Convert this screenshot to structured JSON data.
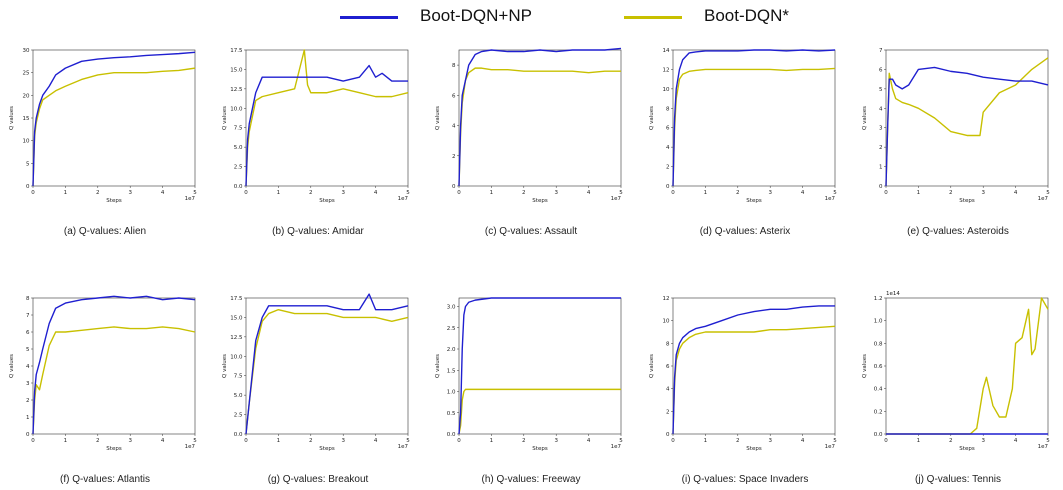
{
  "legend": {
    "entries": [
      {
        "label": "Boot-DQN+NP",
        "color": "#1f1fd0"
      },
      {
        "label": "Boot-DQN*",
        "color": "#c8c000"
      }
    ]
  },
  "chart_data": [
    {
      "type": "line",
      "caption": "(a) Q-values: Alien",
      "xlabel": "Steps",
      "ylabel": "Q values",
      "x_multiplier": "1e7",
      "xlim": [
        0,
        5
      ],
      "xticks": [
        0,
        1,
        2,
        3,
        4,
        5
      ],
      "ylim": [
        0,
        30
      ],
      "yticks": [
        0,
        5,
        10,
        15,
        20,
        25,
        30
      ],
      "y_multiplier": "",
      "series": [
        {
          "name": "Boot-DQN+NP",
          "color": "#1f1fd0",
          "x": [
            0,
            0.05,
            0.1,
            0.2,
            0.3,
            0.5,
            0.7,
            1,
            1.5,
            2,
            2.5,
            3,
            3.5,
            4,
            4.5,
            5
          ],
          "y": [
            0,
            12,
            15,
            18,
            20,
            22,
            24.5,
            26,
            27.5,
            28,
            28.3,
            28.5,
            28.8,
            29,
            29.2,
            29.5
          ]
        },
        {
          "name": "Boot-DQN*",
          "color": "#c8c000",
          "x": [
            0,
            0.05,
            0.1,
            0.2,
            0.3,
            0.5,
            0.7,
            1,
            1.5,
            2,
            2.5,
            3,
            3.5,
            4,
            4.5,
            5
          ],
          "y": [
            0,
            11,
            14,
            17,
            19,
            20,
            21,
            22,
            23.5,
            24.5,
            25,
            25,
            25,
            25.3,
            25.5,
            26
          ]
        }
      ]
    },
    {
      "type": "line",
      "caption": "(b) Q-values: Amidar",
      "xlabel": "Steps",
      "ylabel": "Q values",
      "x_multiplier": "1e7",
      "xlim": [
        0,
        5
      ],
      "xticks": [
        0,
        1,
        2,
        3,
        4,
        5
      ],
      "ylim": [
        0,
        17.5
      ],
      "yticks": [
        0.0,
        2.5,
        5.0,
        7.5,
        10.0,
        12.5,
        15.0,
        17.5
      ],
      "y_multiplier": "",
      "series": [
        {
          "name": "Boot-DQN+NP",
          "color": "#1f1fd0",
          "x": [
            0,
            0.05,
            0.1,
            0.2,
            0.3,
            0.5,
            1,
            1.5,
            2,
            2.5,
            3,
            3.5,
            3.8,
            4,
            4.2,
            4.5,
            5
          ],
          "y": [
            0,
            6,
            8,
            10,
            12,
            14,
            14,
            14,
            14,
            14,
            13.5,
            14,
            15.5,
            14,
            14.5,
            13.5,
            13.5
          ]
        },
        {
          "name": "Boot-DQN*",
          "color": "#c8c000",
          "x": [
            0,
            0.05,
            0.1,
            0.2,
            0.3,
            0.5,
            1,
            1.5,
            1.8,
            1.9,
            2,
            2.5,
            3,
            3.5,
            4,
            4.5,
            5
          ],
          "y": [
            0,
            5,
            7,
            9,
            11,
            11.5,
            12,
            12.5,
            17.5,
            13,
            12,
            12,
            12.5,
            12,
            11.5,
            11.5,
            12
          ]
        }
      ]
    },
    {
      "type": "line",
      "caption": "(c) Q-values: Assault",
      "xlabel": "Steps",
      "ylabel": "Q values",
      "x_multiplier": "1e7",
      "xlim": [
        0,
        5
      ],
      "xticks": [
        0,
        1,
        2,
        3,
        4,
        5
      ],
      "ylim": [
        0,
        9
      ],
      "yticks": [
        0,
        2,
        4,
        6,
        8
      ],
      "y_multiplier": "",
      "series": [
        {
          "name": "Boot-DQN+NP",
          "color": "#1f1fd0",
          "x": [
            0,
            0.05,
            0.1,
            0.2,
            0.3,
            0.5,
            0.7,
            1,
            1.5,
            2,
            2.5,
            3,
            3.5,
            4,
            4.5,
            5
          ],
          "y": [
            0,
            4,
            6,
            7,
            8,
            8.7,
            8.9,
            9,
            8.9,
            8.9,
            9,
            8.9,
            9,
            9,
            9,
            9.1
          ]
        },
        {
          "name": "Boot-DQN*",
          "color": "#c8c000",
          "x": [
            0,
            0.05,
            0.1,
            0.2,
            0.3,
            0.5,
            0.7,
            1,
            1.5,
            2,
            2.5,
            3,
            3.5,
            4,
            4.5,
            5
          ],
          "y": [
            0,
            3.5,
            5.5,
            7,
            7.5,
            7.8,
            7.8,
            7.7,
            7.7,
            7.6,
            7.6,
            7.6,
            7.6,
            7.5,
            7.6,
            7.6
          ]
        }
      ]
    },
    {
      "type": "line",
      "caption": "(d) Q-values: Asterix",
      "xlabel": "Steps",
      "ylabel": "Q values",
      "x_multiplier": "1e7",
      "xlim": [
        0,
        5
      ],
      "xticks": [
        0,
        1,
        2,
        3,
        4,
        5
      ],
      "ylim": [
        0,
        14
      ],
      "yticks": [
        0,
        2,
        4,
        6,
        8,
        10,
        12,
        14
      ],
      "y_multiplier": "",
      "series": [
        {
          "name": "Boot-DQN+NP",
          "color": "#1f1fd0",
          "x": [
            0,
            0.05,
            0.1,
            0.2,
            0.3,
            0.5,
            0.7,
            1,
            1.5,
            2,
            2.5,
            3,
            3.5,
            4,
            4.5,
            5
          ],
          "y": [
            0,
            7,
            10,
            12,
            13,
            13.7,
            13.8,
            13.9,
            13.9,
            13.9,
            14,
            14,
            13.9,
            14,
            13.9,
            14
          ]
        },
        {
          "name": "Boot-DQN*",
          "color": "#c8c000",
          "x": [
            0,
            0.05,
            0.1,
            0.2,
            0.3,
            0.5,
            0.7,
            1,
            1.5,
            2,
            2.5,
            3,
            3.5,
            4,
            4.5,
            5
          ],
          "y": [
            0,
            6,
            9,
            11,
            11.5,
            11.8,
            11.9,
            12,
            12,
            12,
            12,
            12,
            11.9,
            12,
            12,
            12.1
          ]
        }
      ]
    },
    {
      "type": "line",
      "caption": "(e) Q-values: Asteroids",
      "xlabel": "Steps",
      "ylabel": "Q values",
      "x_multiplier": "1e7",
      "xlim": [
        0,
        5
      ],
      "xticks": [
        0,
        1,
        2,
        3,
        4,
        5
      ],
      "ylim": [
        0,
        7
      ],
      "yticks": [
        0,
        1,
        2,
        3,
        4,
        5,
        6,
        7
      ],
      "y_multiplier": "",
      "series": [
        {
          "name": "Boot-DQN+NP",
          "color": "#1f1fd0",
          "x": [
            0,
            0.05,
            0.1,
            0.2,
            0.3,
            0.5,
            0.7,
            1,
            1.5,
            2,
            2.5,
            3,
            3.5,
            4,
            4.5,
            5
          ],
          "y": [
            0,
            3,
            5.5,
            5.5,
            5.2,
            5,
            5.2,
            6,
            6.1,
            5.9,
            5.8,
            5.6,
            5.5,
            5.4,
            5.4,
            5.2
          ]
        },
        {
          "name": "Boot-DQN*",
          "color": "#c8c000",
          "x": [
            0,
            0.05,
            0.1,
            0.2,
            0.3,
            0.5,
            0.7,
            1,
            1.5,
            2,
            2.5,
            2.9,
            3,
            3.5,
            4,
            4.5,
            5
          ],
          "y": [
            0,
            3,
            5.8,
            5,
            4.5,
            4.3,
            4.2,
            4,
            3.5,
            2.8,
            2.6,
            2.6,
            3.8,
            4.8,
            5.2,
            6,
            6.6
          ]
        }
      ]
    },
    {
      "type": "line",
      "caption": "(f) Q-values: Atlantis",
      "xlabel": "Steps",
      "ylabel": "Q values",
      "x_multiplier": "1e7",
      "xlim": [
        0,
        5
      ],
      "xticks": [
        0,
        1,
        2,
        3,
        4,
        5
      ],
      "ylim": [
        0,
        8
      ],
      "yticks": [
        0,
        1,
        2,
        3,
        4,
        5,
        6,
        7,
        8
      ],
      "y_multiplier": "",
      "series": [
        {
          "name": "Boot-DQN+NP",
          "color": "#1f1fd0",
          "x": [
            0,
            0.05,
            0.1,
            0.2,
            0.3,
            0.5,
            0.7,
            1,
            1.5,
            2,
            2.5,
            3,
            3.5,
            4,
            4.5,
            5
          ],
          "y": [
            0,
            2.5,
            3.5,
            4.2,
            5,
            6.5,
            7.4,
            7.7,
            7.9,
            8,
            8.1,
            8,
            8.1,
            7.9,
            8,
            7.9
          ]
        },
        {
          "name": "Boot-DQN*",
          "color": "#c8c000",
          "x": [
            0,
            0.05,
            0.1,
            0.2,
            0.3,
            0.5,
            0.7,
            1,
            1.5,
            2,
            2.5,
            3,
            3.5,
            4,
            4.5,
            5
          ],
          "y": [
            0,
            2,
            2.9,
            2.6,
            3.5,
            5.2,
            6,
            6,
            6.1,
            6.2,
            6.3,
            6.2,
            6.2,
            6.3,
            6.2,
            6
          ]
        }
      ]
    },
    {
      "type": "line",
      "caption": "(g) Q-values: Breakout",
      "xlabel": "Steps",
      "ylabel": "Q values",
      "x_multiplier": "1e7",
      "xlim": [
        0,
        5
      ],
      "xticks": [
        0,
        1,
        2,
        3,
        4,
        5
      ],
      "ylim": [
        0,
        17.5
      ],
      "yticks": [
        0.0,
        2.5,
        5.0,
        7.5,
        10.0,
        12.5,
        15.0,
        17.5
      ],
      "y_multiplier": "",
      "series": [
        {
          "name": "Boot-DQN+NP",
          "color": "#1f1fd0",
          "x": [
            0,
            0.05,
            0.1,
            0.2,
            0.3,
            0.5,
            0.7,
            1,
            1.5,
            2,
            2.5,
            3,
            3.5,
            3.8,
            4,
            4.5,
            5
          ],
          "y": [
            0,
            2,
            4,
            8,
            12,
            15,
            16.5,
            16.5,
            16.5,
            16.5,
            16.5,
            16,
            16,
            18,
            16,
            16,
            16.5
          ]
        },
        {
          "name": "Boot-DQN*",
          "color": "#c8c000",
          "x": [
            0,
            0.05,
            0.1,
            0.2,
            0.3,
            0.5,
            0.7,
            1,
            1.5,
            2,
            2.5,
            3,
            3.5,
            4,
            4.5,
            5
          ],
          "y": [
            0,
            2,
            4,
            7.5,
            11,
            14.5,
            15.5,
            16,
            15.5,
            15.5,
            15.5,
            15,
            15,
            15,
            14.5,
            15
          ]
        }
      ]
    },
    {
      "type": "line",
      "caption": "(h) Q-values: Freeway",
      "xlabel": "Steps",
      "ylabel": "Q values",
      "x_multiplier": "1e7",
      "xlim": [
        0,
        5
      ],
      "xticks": [
        0,
        1,
        2,
        3,
        4,
        5
      ],
      "ylim": [
        0,
        3.2
      ],
      "yticks": [
        0.0,
        0.5,
        1.0,
        1.5,
        2.0,
        2.5,
        3.0
      ],
      "y_multiplier": "",
      "series": [
        {
          "name": "Boot-DQN+NP",
          "color": "#1f1fd0",
          "x": [
            0,
            0.05,
            0.1,
            0.15,
            0.2,
            0.3,
            0.5,
            1,
            2,
            3,
            4,
            5
          ],
          "y": [
            0,
            0.5,
            2,
            2.8,
            3,
            3.1,
            3.15,
            3.2,
            3.2,
            3.2,
            3.2,
            3.2
          ]
        },
        {
          "name": "Boot-DQN*",
          "color": "#c8c000",
          "x": [
            0,
            0.05,
            0.1,
            0.15,
            0.2,
            0.3,
            0.5,
            1,
            2,
            3,
            4,
            5
          ],
          "y": [
            0,
            0.2,
            0.8,
            1.0,
            1.05,
            1.05,
            1.05,
            1.05,
            1.05,
            1.05,
            1.05,
            1.05
          ]
        }
      ]
    },
    {
      "type": "line",
      "caption": "(i) Q-values: Space Invaders",
      "xlabel": "Steps",
      "ylabel": "Q values",
      "x_multiplier": "1e7",
      "xlim": [
        0,
        5
      ],
      "xticks": [
        0,
        1,
        2,
        3,
        4,
        5
      ],
      "ylim": [
        0,
        12
      ],
      "yticks": [
        0,
        2,
        4,
        6,
        8,
        10,
        12
      ],
      "y_multiplier": "",
      "series": [
        {
          "name": "Boot-DQN+NP",
          "color": "#1f1fd0",
          "x": [
            0,
            0.05,
            0.1,
            0.2,
            0.3,
            0.5,
            0.7,
            1,
            1.5,
            2,
            2.5,
            3,
            3.5,
            4,
            4.5,
            5
          ],
          "y": [
            0,
            5,
            7,
            8,
            8.5,
            9,
            9.3,
            9.5,
            10,
            10.5,
            10.8,
            11,
            11,
            11.2,
            11.3,
            11.3
          ]
        },
        {
          "name": "Boot-DQN*",
          "color": "#c8c000",
          "x": [
            0,
            0.05,
            0.1,
            0.2,
            0.3,
            0.5,
            0.7,
            1,
            1.5,
            2,
            2.5,
            3,
            3.5,
            4,
            4.5,
            5
          ],
          "y": [
            0,
            4.5,
            6.5,
            7.5,
            8,
            8.5,
            8.8,
            9,
            9,
            9,
            9,
            9.2,
            9.2,
            9.3,
            9.4,
            9.5
          ]
        }
      ]
    },
    {
      "type": "line",
      "caption": "(j) Q-values: Tennis",
      "xlabel": "Steps",
      "ylabel": "Q values",
      "x_multiplier": "1e7",
      "xlim": [
        0,
        5
      ],
      "xticks": [
        0,
        1,
        2,
        3,
        4,
        5
      ],
      "ylim": [
        0,
        1.2
      ],
      "yticks": [
        0.0,
        0.2,
        0.4,
        0.6,
        0.8,
        1.0,
        1.2
      ],
      "y_multiplier": "1e14",
      "series": [
        {
          "name": "Boot-DQN+NP",
          "color": "#1f1fd0",
          "x": [
            0,
            1,
            2,
            3,
            4,
            5
          ],
          "y": [
            0,
            0,
            0,
            0,
            0,
            0
          ]
        },
        {
          "name": "Boot-DQN*",
          "color": "#c8c000",
          "x": [
            0,
            1,
            2,
            2.6,
            2.8,
            3.0,
            3.1,
            3.3,
            3.5,
            3.7,
            3.9,
            4.0,
            4.2,
            4.4,
            4.5,
            4.6,
            4.8,
            5.0
          ],
          "y": [
            0,
            0,
            0,
            0.0,
            0.05,
            0.4,
            0.5,
            0.25,
            0.15,
            0.15,
            0.4,
            0.8,
            0.85,
            1.1,
            0.7,
            0.75,
            1.2,
            1.1
          ]
        }
      ]
    }
  ]
}
